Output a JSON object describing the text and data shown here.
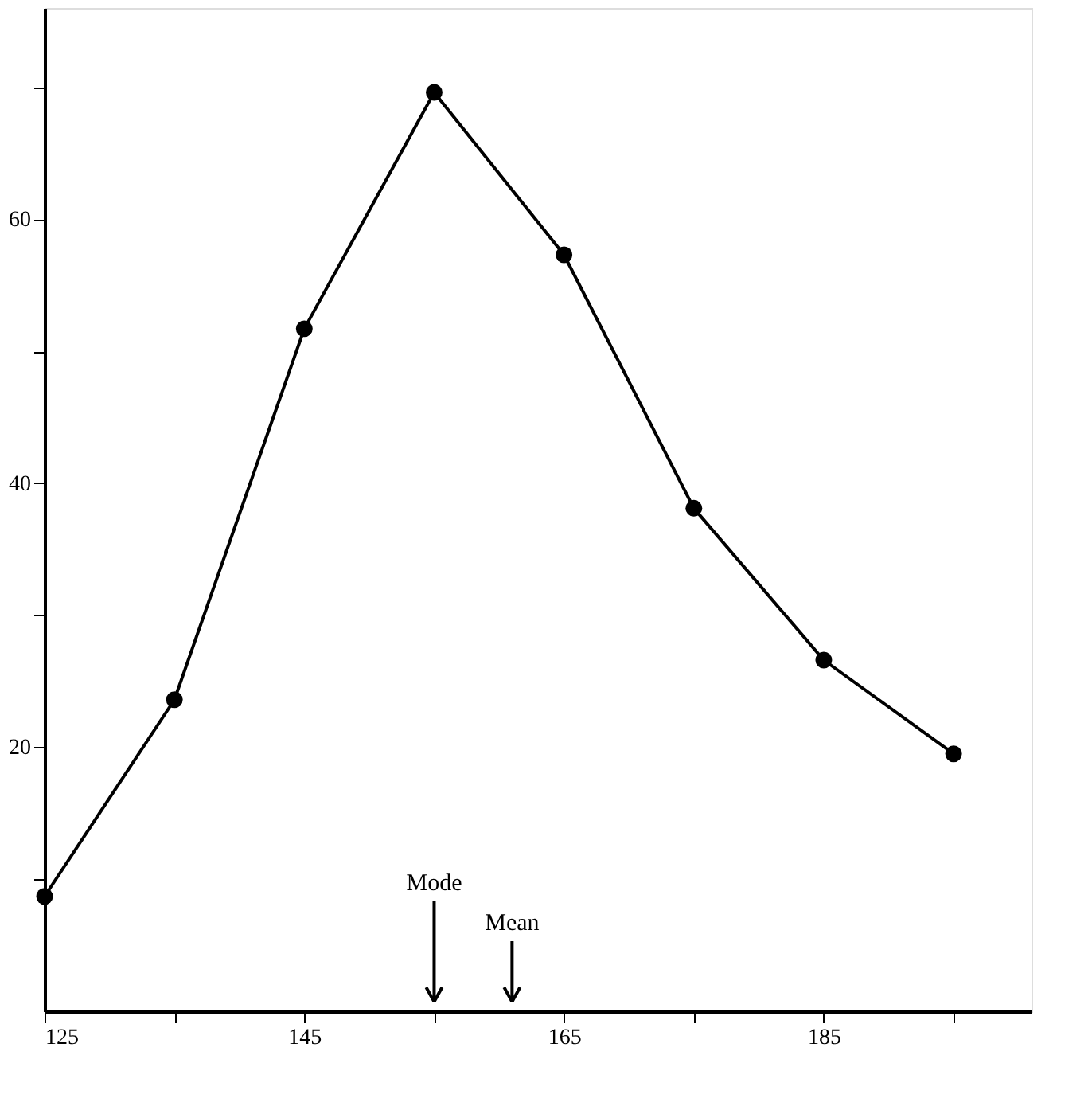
{
  "chart_data": {
    "type": "line",
    "x": [
      125,
      135,
      145,
      155,
      165,
      175,
      185,
      195
    ],
    "values": [
      8.7,
      23.6,
      51.7,
      69.6,
      57.3,
      38.1,
      26.6,
      19.5
    ],
    "color": "#000000",
    "marker": "circle",
    "line_style": "solid",
    "xlim": [
      125,
      201
    ],
    "xticks": [
      125,
      {
        "value": 135,
        "label": null
      },
      145,
      {
        "value": 155,
        "label": null
      },
      165,
      {
        "value": 175,
        "label": null
      },
      185,
      {
        "value": 195,
        "label": null
      }
    ],
    "ylim": [
      0,
      76
    ],
    "yticks": [
      {
        "value": 10,
        "label": null
      },
      20,
      {
        "value": 30,
        "label": null
      },
      40,
      {
        "value": 50,
        "label": null
      },
      60,
      {
        "value": 70,
        "label": null
      }
    ],
    "ref_lines": [
      {
        "axis": "x",
        "value": 155,
        "label": "Mode"
      },
      {
        "axis": "x",
        "value": 161,
        "label": "Mean"
      }
    ]
  }
}
